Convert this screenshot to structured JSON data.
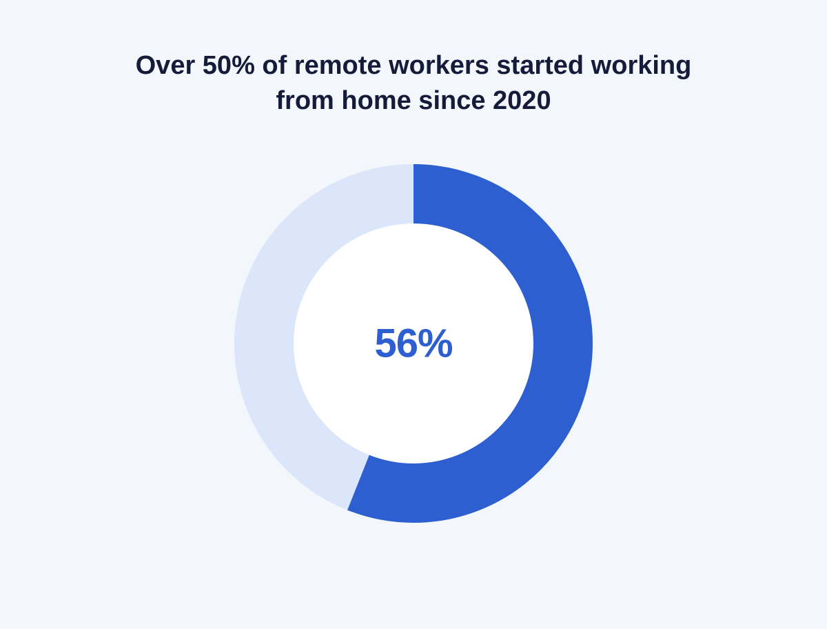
{
  "background_color": "#f3f7fb",
  "title": {
    "text": "Over 50% of remote workers started working from home since 2020",
    "color": "#141c3a",
    "fontsize": 38
  },
  "chart": {
    "type": "donut",
    "percent": 56,
    "center_label": "56%",
    "center_label_color": "#2d5fd1",
    "center_label_fontsize": 58,
    "outer_diameter": 520,
    "ring_thickness": 86,
    "track_color": "#dbe6fb",
    "fill_color": "#2d5fd1",
    "inner_background": "#ffffff",
    "start_angle_deg": 0
  }
}
